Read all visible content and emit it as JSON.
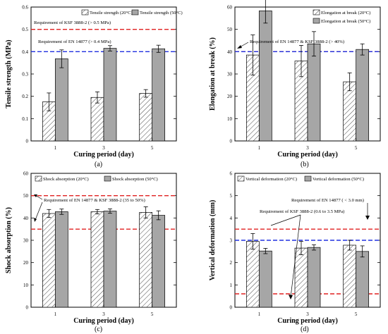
{
  "chart_data": [
    {
      "type": "bar",
      "panel_label": "(a)",
      "categories": [
        "1",
        "3",
        "5"
      ],
      "xlabel": "Curing period (day)",
      "ylabel": "Tensile strength (MPa)",
      "ylim": [
        0,
        0.6
      ],
      "yticks": [
        "0",
        "0.1",
        "0.2",
        "0.3",
        "0.4",
        "0.5",
        "0.6"
      ],
      "legend_position": "top-right",
      "series": [
        {
          "name": "Tensile strength (20°C)",
          "pattern": "hatched",
          "values": [
            0.175,
            0.195,
            0.213
          ],
          "errors": [
            0.04,
            0.025,
            0.017
          ]
        },
        {
          "name": "Tensile strength (50°C)",
          "pattern": "gray",
          "values": [
            0.368,
            0.415,
            0.413
          ],
          "errors": [
            0.04,
            0.012,
            0.016
          ]
        }
      ],
      "reference_lines": [
        {
          "value": 0.5,
          "color": "#e02020",
          "label": "Requirement of KSF 3888-2 (> 0.5 MPa)"
        },
        {
          "value": 0.4,
          "color": "#2030e0",
          "label": "Requirement of EN 14877 (> 0.4 MPa)"
        }
      ]
    },
    {
      "type": "bar",
      "panel_label": "(b)",
      "categories": [
        "1",
        "3",
        "5"
      ],
      "xlabel": "Curing period (day)",
      "ylabel": "Elongation at break (%)",
      "ylim": [
        0,
        60
      ],
      "yticks": [
        "0",
        "10",
        "20",
        "30",
        "40",
        "50",
        "60"
      ],
      "legend_position": "top-right",
      "series": [
        {
          "name": "Elongation at break (20°C)",
          "pattern": "hatched",
          "values": [
            38.5,
            35.8,
            26.5
          ],
          "errors": [
            9.0,
            7.0,
            4.0
          ]
        },
        {
          "name": "Elongation at break (50°C)",
          "pattern": "gray",
          "values": [
            58.3,
            43.5,
            41.0
          ],
          "errors": [
            5.5,
            5.5,
            2.5
          ]
        }
      ],
      "reference_lines": [
        {
          "value": 40,
          "color": "#e02020",
          "label": "Requirement of EN 14877 & KSF 3888-2 (> 40%)"
        },
        {
          "value": 40,
          "color": "#2030e0",
          "label": ""
        }
      ]
    },
    {
      "type": "bar",
      "panel_label": "(c)",
      "categories": [
        "1",
        "3",
        "5"
      ],
      "xlabel": "Curing period (day)",
      "ylabel": "Shock absorption (%)",
      "ylim": [
        0,
        60
      ],
      "yticks": [
        "0",
        "10",
        "20",
        "30",
        "40",
        "50",
        "60"
      ],
      "legend_position": "top-left",
      "series": [
        {
          "name": "Shock absorption (20°C)",
          "pattern": "hatched",
          "values": [
            42.0,
            42.8,
            42.5
          ],
          "errors": [
            1.8,
            1.0,
            2.5
          ]
        },
        {
          "name": "Shock absorption (50°C)",
          "pattern": "gray",
          "values": [
            42.8,
            43.1,
            41.2
          ],
          "errors": [
            1.2,
            1.0,
            2.0
          ]
        }
      ],
      "reference_lines": [
        {
          "value": 50,
          "color": "#e02020",
          "label": "Requirement of EN 14877  & KSF 3888-2 (35 to 50%)"
        },
        {
          "value": 35,
          "color": "#e02020",
          "label": ""
        }
      ]
    },
    {
      "type": "bar",
      "panel_label": "(d)",
      "categories": [
        "1",
        "3",
        "5"
      ],
      "xlabel": "Curing period (day)",
      "ylabel": "Vertical deformation (mm)",
      "ylim": [
        0,
        6
      ],
      "yticks": [
        "0",
        "1",
        "2",
        "3",
        "4",
        "5",
        "6"
      ],
      "legend_position": "top-left",
      "series": [
        {
          "name": "Vertical deformation (20°C)",
          "pattern": "hatched",
          "values": [
            2.95,
            2.65,
            2.78
          ],
          "errors": [
            0.35,
            0.3,
            0.22
          ]
        },
        {
          "name": "Vertical deformation (50°C)",
          "pattern": "gray",
          "values": [
            2.52,
            2.68,
            2.5
          ],
          "errors": [
            0.12,
            0.12,
            0.25
          ]
        }
      ],
      "reference_lines": [
        {
          "value": 3.5,
          "color": "#e02020",
          "label": ""
        },
        {
          "value": 0.6,
          "color": "#e02020",
          "label": "Requirement of KSF 3888-2 (0.6 to 3.5 MPa)"
        },
        {
          "value": 3.0,
          "color": "#2030e0",
          "label": "Requirement of EN 14877 ( < 3.0 mm)"
        }
      ]
    }
  ]
}
